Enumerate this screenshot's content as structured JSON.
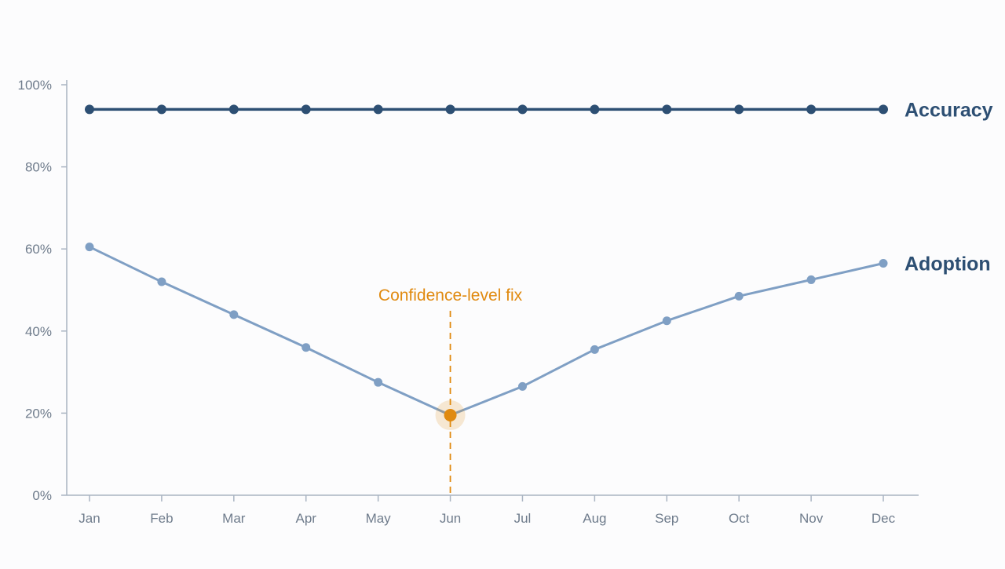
{
  "chart_data": {
    "type": "line",
    "categories": [
      "Jan",
      "Feb",
      "Mar",
      "Apr",
      "May",
      "Jun",
      "Jul",
      "Aug",
      "Sep",
      "Oct",
      "Nov",
      "Dec"
    ],
    "y_ticks": [
      "0%",
      "20%",
      "40%",
      "60%",
      "80%",
      "100%"
    ],
    "ylim": [
      0,
      100
    ],
    "grid": false,
    "series": [
      {
        "name": "Accuracy",
        "values": [
          94,
          94,
          94,
          94,
          94,
          94,
          94,
          94,
          94,
          94,
          94,
          94
        ],
        "color": "#2d4f73"
      },
      {
        "name": "Adoption",
        "values": [
          60.5,
          52,
          44,
          36,
          27.5,
          19.5,
          26.5,
          35.5,
          42.5,
          48.5,
          52.5,
          56.5
        ],
        "color": "#7f9fc4"
      }
    ],
    "annotation": {
      "label": "Confidence-level fix",
      "category": "Jun",
      "value": 19.5,
      "color": "#e08a10"
    },
    "axis_color": "#a9b4c2",
    "tick_text_color": "#6f7c8c"
  }
}
